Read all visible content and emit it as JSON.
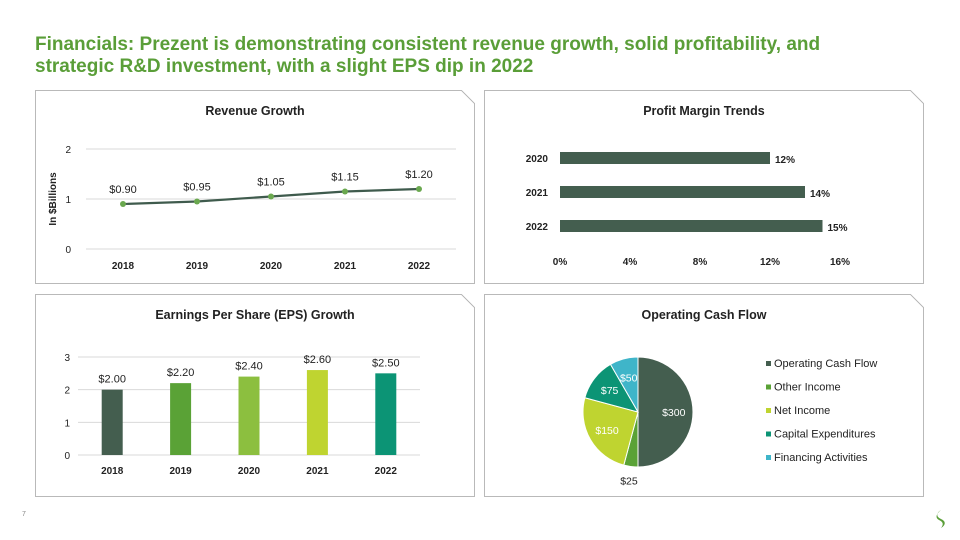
{
  "slide": {
    "title_line1": "Financials: Prezent is demonstrating consistent revenue growth, solid profitability, and",
    "title_line2": "strategic R&D investment, with a slight EPS dip in 2022",
    "page_number": "7"
  },
  "colors": {
    "title": "#5a9e38",
    "line": "#3f5b4d",
    "line_marker": "#6aa84f",
    "bar_dark": "#445e4f"
  },
  "chart_data": [
    {
      "type": "line",
      "title": "Revenue Growth",
      "ylabel": "In $Billions",
      "categories": [
        "2018",
        "2019",
        "2020",
        "2021",
        "2022"
      ],
      "values": [
        0.9,
        0.95,
        1.05,
        1.15,
        1.2
      ],
      "data_labels": [
        "$0.90",
        "$0.95",
        "$1.05",
        "$1.15",
        "$1.20"
      ],
      "yticks": [
        "0",
        "1",
        "2"
      ],
      "ylim": [
        0,
        2
      ],
      "grid": true
    },
    {
      "type": "bar",
      "orientation": "horizontal",
      "title": "Profit Margin Trends",
      "categories": [
        "2020",
        "2021",
        "2022"
      ],
      "values": [
        12,
        14,
        15
      ],
      "data_labels": [
        "12%",
        "14%",
        "15%"
      ],
      "xticks": [
        "0%",
        "4%",
        "8%",
        "12%",
        "16%"
      ],
      "xlim": [
        0,
        16
      ],
      "grid": false
    },
    {
      "type": "bar",
      "title": "Earnings Per Share (EPS) Growth",
      "categories": [
        "2018",
        "2019",
        "2020",
        "2021",
        "2022"
      ],
      "values": [
        2.0,
        2.2,
        2.4,
        2.6,
        2.5
      ],
      "data_labels": [
        "$2.00",
        "$2.20",
        "$2.40",
        "$2.60",
        "$2.50"
      ],
      "colors": [
        "#445e4f",
        "#5aa236",
        "#8cbf3f",
        "#bfd430",
        "#0c9475"
      ],
      "yticks": [
        "0",
        "1",
        "2",
        "3"
      ],
      "ylim": [
        0,
        3
      ],
      "grid": true
    },
    {
      "type": "pie",
      "title": "Operating Cash Flow",
      "series": [
        {
          "name": "Operating Cash Flow",
          "value": 300,
          "label": "$300",
          "color": "#445e4f"
        },
        {
          "name": "Other Income",
          "value": 25,
          "label": "$25",
          "color": "#5aa236"
        },
        {
          "name": "Net Income",
          "value": 150,
          "label": "$150",
          "color": "#bfd430"
        },
        {
          "name": "Capital Expenditures",
          "value": 75,
          "label": "$75",
          "color": "#0c9475"
        },
        {
          "name": "Financing Activities",
          "value": 50,
          "label": "$50",
          "color": "#3fb5c9"
        }
      ],
      "legend": "right"
    }
  ]
}
